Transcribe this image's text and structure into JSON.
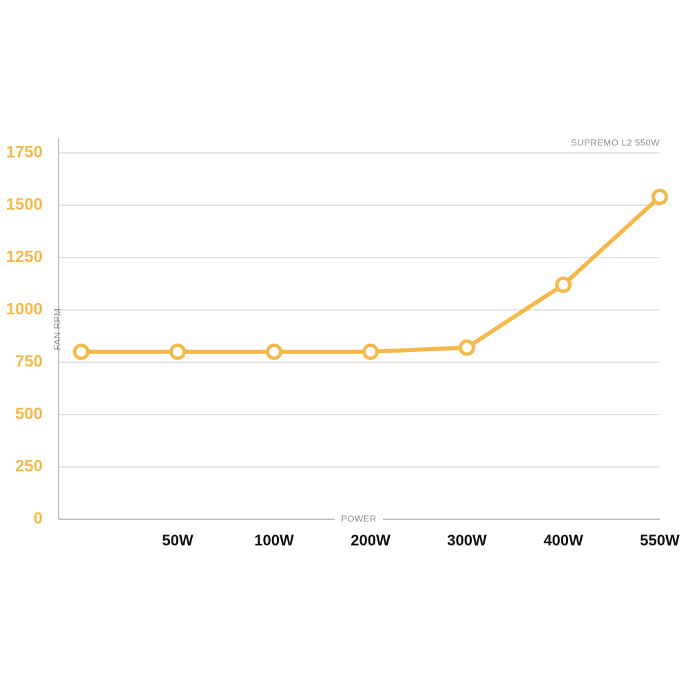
{
  "chart_data": {
    "type": "line",
    "title": "SUPREMO L2 550W",
    "x_label": "POWER",
    "y_label": "FAN RPM",
    "categories": [
      null,
      "50W",
      "100W",
      "200W",
      "300W",
      "400W",
      "550W"
    ],
    "values": [
      800,
      800,
      800,
      800,
      820,
      1120,
      1540
    ],
    "color": "#f5b94a",
    "ylim": [
      0,
      1750
    ],
    "yticks": [
      0,
      250,
      500,
      750,
      1000,
      1250,
      1500,
      1750
    ],
    "grid": true
  }
}
